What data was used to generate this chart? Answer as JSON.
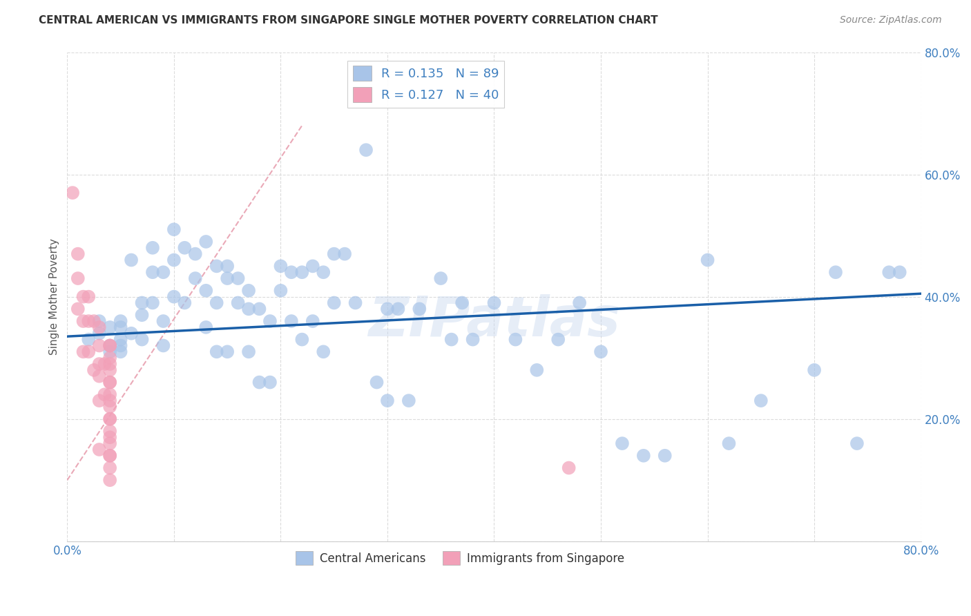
{
  "title": "CENTRAL AMERICAN VS IMMIGRANTS FROM SINGAPORE SINGLE MOTHER POVERTY CORRELATION CHART",
  "source": "Source: ZipAtlas.com",
  "ylabel": "Single Mother Poverty",
  "xlim": [
    0,
    0.8
  ],
  "ylim": [
    0,
    0.8
  ],
  "xtick_positions": [
    0.0,
    0.1,
    0.2,
    0.3,
    0.4,
    0.5,
    0.6,
    0.7,
    0.8
  ],
  "ytick_positions": [
    0.0,
    0.2,
    0.4,
    0.6,
    0.8
  ],
  "xticklabels": [
    "0.0%",
    "",
    "",
    "",
    "",
    "",
    "",
    "",
    "80.0%"
  ],
  "yticklabels": [
    "",
    "20.0%",
    "40.0%",
    "60.0%",
    "80.0%"
  ],
  "color_blue": "#a8c4e8",
  "color_pink": "#f2a0b8",
  "color_line_blue": "#1a5fa8",
  "color_line_pink": "#e8a0b0",
  "color_text_blue": "#4080c0",
  "watermark": "ZIPatlas",
  "ca_x": [
    0.02,
    0.03,
    0.03,
    0.04,
    0.04,
    0.04,
    0.05,
    0.05,
    0.05,
    0.05,
    0.05,
    0.06,
    0.06,
    0.07,
    0.07,
    0.07,
    0.08,
    0.08,
    0.08,
    0.09,
    0.09,
    0.09,
    0.1,
    0.1,
    0.1,
    0.11,
    0.11,
    0.12,
    0.12,
    0.13,
    0.13,
    0.13,
    0.14,
    0.14,
    0.14,
    0.15,
    0.15,
    0.15,
    0.16,
    0.16,
    0.17,
    0.17,
    0.17,
    0.18,
    0.18,
    0.19,
    0.19,
    0.2,
    0.2,
    0.21,
    0.21,
    0.22,
    0.22,
    0.23,
    0.23,
    0.24,
    0.24,
    0.25,
    0.25,
    0.26,
    0.27,
    0.28,
    0.29,
    0.3,
    0.3,
    0.31,
    0.32,
    0.33,
    0.35,
    0.36,
    0.37,
    0.38,
    0.4,
    0.42,
    0.44,
    0.46,
    0.48,
    0.5,
    0.52,
    0.54,
    0.56,
    0.6,
    0.62,
    0.65,
    0.7,
    0.72,
    0.74,
    0.77,
    0.78
  ],
  "ca_y": [
    0.33,
    0.36,
    0.34,
    0.35,
    0.32,
    0.31,
    0.36,
    0.35,
    0.33,
    0.32,
    0.31,
    0.46,
    0.34,
    0.39,
    0.37,
    0.33,
    0.48,
    0.44,
    0.39,
    0.44,
    0.36,
    0.32,
    0.51,
    0.46,
    0.4,
    0.48,
    0.39,
    0.47,
    0.43,
    0.49,
    0.41,
    0.35,
    0.45,
    0.39,
    0.31,
    0.45,
    0.43,
    0.31,
    0.43,
    0.39,
    0.41,
    0.38,
    0.31,
    0.38,
    0.26,
    0.26,
    0.36,
    0.45,
    0.41,
    0.44,
    0.36,
    0.44,
    0.33,
    0.45,
    0.36,
    0.44,
    0.31,
    0.47,
    0.39,
    0.47,
    0.39,
    0.64,
    0.26,
    0.38,
    0.23,
    0.38,
    0.23,
    0.38,
    0.43,
    0.33,
    0.39,
    0.33,
    0.39,
    0.33,
    0.28,
    0.33,
    0.39,
    0.31,
    0.16,
    0.14,
    0.14,
    0.46,
    0.16,
    0.23,
    0.28,
    0.44,
    0.16,
    0.44,
    0.44
  ],
  "sg_x": [
    0.005,
    0.01,
    0.01,
    0.01,
    0.015,
    0.015,
    0.015,
    0.02,
    0.02,
    0.02,
    0.025,
    0.025,
    0.03,
    0.03,
    0.03,
    0.03,
    0.03,
    0.03,
    0.035,
    0.035,
    0.04,
    0.04,
    0.04,
    0.04,
    0.04,
    0.04,
    0.04,
    0.04,
    0.04,
    0.04,
    0.04,
    0.04,
    0.04,
    0.04,
    0.04,
    0.04,
    0.04,
    0.04,
    0.04,
    0.47
  ],
  "sg_y": [
    0.57,
    0.47,
    0.43,
    0.38,
    0.4,
    0.36,
    0.31,
    0.4,
    0.36,
    0.31,
    0.36,
    0.28,
    0.35,
    0.32,
    0.29,
    0.27,
    0.23,
    0.15,
    0.29,
    0.24,
    0.32,
    0.3,
    0.28,
    0.26,
    0.24,
    0.22,
    0.2,
    0.18,
    0.16,
    0.14,
    0.12,
    0.32,
    0.29,
    0.26,
    0.23,
    0.2,
    0.17,
    0.14,
    0.1,
    0.12
  ]
}
